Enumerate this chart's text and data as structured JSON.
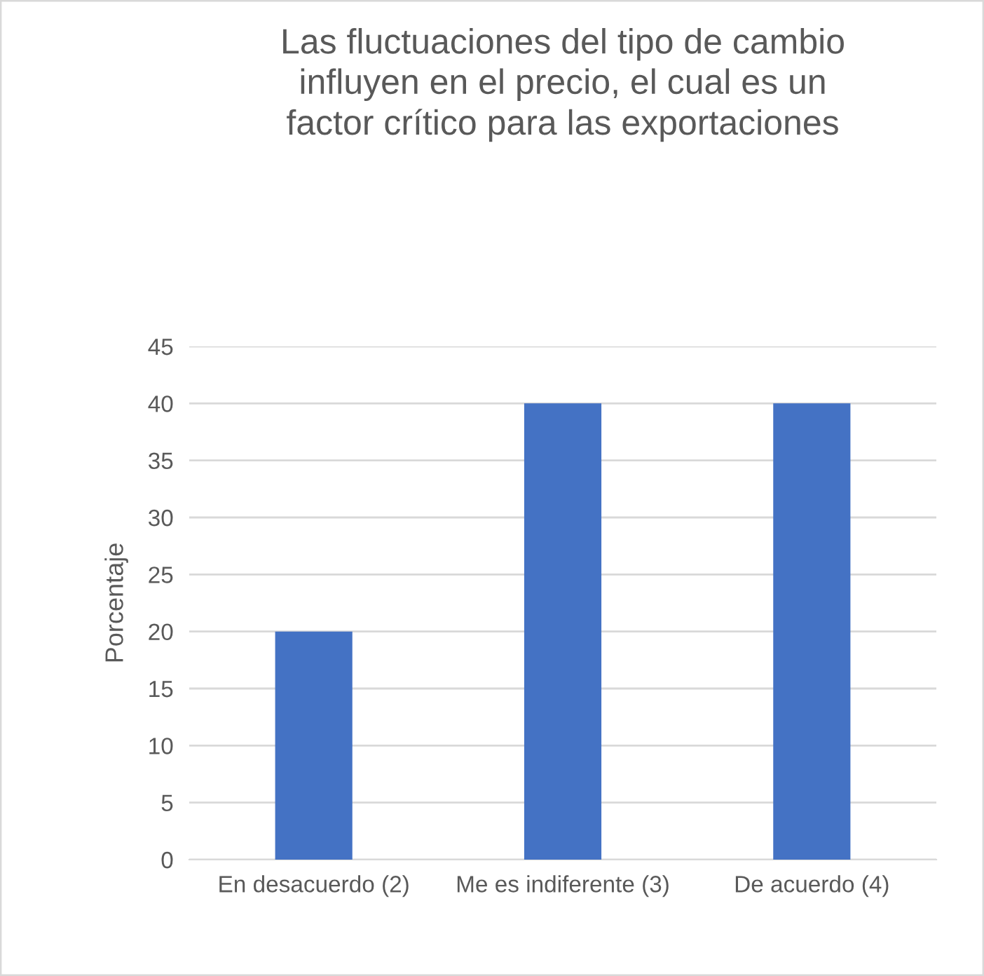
{
  "chart_data": {
    "type": "bar",
    "title": "Las fluctuaciones del tipo de cambio influyen en el precio, el cual es un factor crítico para las exportaciones",
    "ylabel": "Porcentaje",
    "categories": [
      "En desacuerdo (2)",
      "Me es indiferente (3)",
      "De acuerdo (4)"
    ],
    "values": [
      20,
      40,
      40
    ],
    "color": "#4472c4",
    "ylim": [
      0,
      45
    ],
    "yticks": [
      0,
      5,
      10,
      15,
      20,
      25,
      30,
      35,
      40,
      45
    ],
    "grid": "y"
  }
}
